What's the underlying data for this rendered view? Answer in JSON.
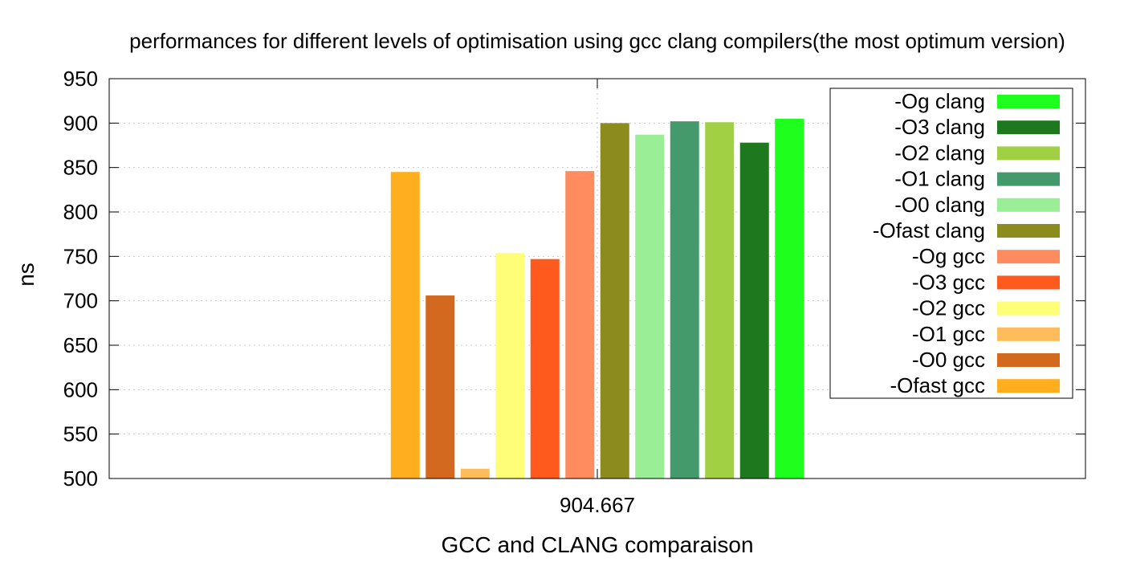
{
  "chart_data": {
    "type": "bar",
    "title": "performances for different levels of optimisation using gcc  clang compilers(the most optimum  version)",
    "xlabel": "GCC and CLANG comparaison",
    "ylabel": "ns",
    "categories": [
      "904.667"
    ],
    "ylim": [
      500,
      950
    ],
    "yticks": [
      500,
      550,
      600,
      650,
      700,
      750,
      800,
      850,
      900,
      950
    ],
    "grid": true,
    "legend_position": "top-right",
    "series": [
      {
        "name": "-Ofast gcc",
        "values": [
          845
        ],
        "color": "#ffaf1e"
      },
      {
        "name": "-O0 gcc",
        "values": [
          706
        ],
        "color": "#d2691e"
      },
      {
        "name": "-O1 gcc",
        "values": [
          511
        ],
        "color": "#ffbc5a"
      },
      {
        "name": "-O2 gcc",
        "values": [
          754
        ],
        "color": "#ffff77"
      },
      {
        "name": "-O3 gcc",
        "values": [
          747
        ],
        "color": "#ff5a1e"
      },
      {
        "name": "-Og gcc",
        "values": [
          846
        ],
        "color": "#ff8c5f"
      },
      {
        "name": "-Ofast clang",
        "values": [
          900
        ],
        "color": "#8b8b1e"
      },
      {
        "name": "-O0 clang",
        "values": [
          887
        ],
        "color": "#9aee96"
      },
      {
        "name": "-O1 clang",
        "values": [
          902
        ],
        "color": "#449a6a"
      },
      {
        "name": "-O2 clang",
        "values": [
          901
        ],
        "color": "#a2d044"
      },
      {
        "name": "-O3 clang",
        "values": [
          878
        ],
        "color": "#1e781e"
      },
      {
        "name": "-Og clang",
        "values": [
          905
        ],
        "color": "#1eff1e"
      }
    ]
  }
}
